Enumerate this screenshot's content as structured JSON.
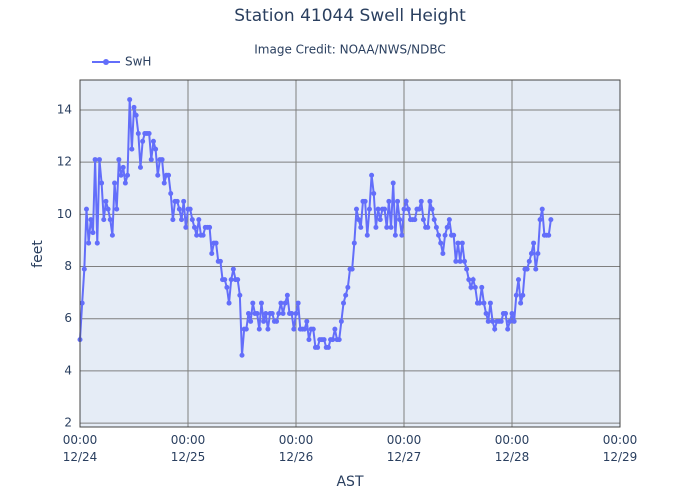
{
  "chart_data": {
    "type": "line",
    "title": "Station 41044 Swell Height",
    "subtitle": "Image Credit: NOAA/NWS/NDBC",
    "x_label": "AST",
    "y_label": "feet",
    "x": [
      0,
      0.48,
      0.96,
      1.44,
      1.92,
      2.4,
      2.88,
      3.36,
      3.84,
      4.32,
      4.8,
      5.28,
      5.76,
      6.24,
      6.72,
      7.2,
      7.68,
      8.16,
      8.64,
      9.12,
      9.6,
      10.08,
      10.56,
      11.04,
      11.52,
      12,
      12.48,
      12.96,
      13.44,
      13.92,
      14.4,
      14.88,
      15.36,
      15.84,
      16.32,
      16.8,
      17.28,
      17.76,
      18.24,
      18.72,
      19.2,
      19.68,
      20.16,
      20.64,
      21.12,
      21.6,
      22.08,
      22.56,
      23.04,
      23.52,
      24,
      24.48,
      24.96,
      25.44,
      25.92,
      26.4,
      26.88,
      27.36,
      27.84,
      28.32,
      28.8,
      29.28,
      29.76,
      30.24,
      30.72,
      31.2,
      31.68,
      32.16,
      32.64,
      33.12,
      33.6,
      34.08,
      34.56,
      35.04,
      35.52,
      36,
      36.48,
      36.96,
      37.44,
      37.92,
      38.4,
      38.88,
      39.36,
      39.84,
      40.32,
      40.8,
      41.28,
      41.76,
      42.24,
      42.72,
      43.2,
      43.68,
      44.16,
      44.64,
      45.12,
      45.6,
      46.08,
      46.56,
      47.04,
      47.52,
      48,
      48.48,
      48.96,
      49.44,
      49.92,
      50.4,
      50.88,
      51.36,
      51.84,
      52.32,
      52.8,
      53.28,
      53.76,
      54.24,
      54.72,
      55.2,
      55.68,
      56.16,
      56.64,
      57.12,
      57.6,
      58.08,
      58.56,
      59.04,
      59.52,
      60,
      60.48,
      60.96,
      61.44,
      61.92,
      62.4,
      62.88,
      63.36,
      63.84,
      64.32,
      64.8,
      65.28,
      65.76,
      66.24,
      66.72,
      67.2,
      67.68,
      68.16,
      68.64,
      69.12,
      69.6,
      70.08,
      70.56,
      71.04,
      71.52,
      72,
      72.48,
      72.96,
      73.44,
      73.92,
      74.4,
      74.88,
      75.36,
      75.84,
      76.32,
      76.8,
      77.28,
      77.76,
      78.24,
      78.72,
      79.2,
      79.68,
      80.16,
      80.64,
      81.12,
      81.6,
      82.08,
      82.56,
      83.04,
      83.52,
      84,
      84.48,
      84.96,
      85.44,
      85.92,
      86.4,
      86.88,
      87.36,
      87.84,
      88.32,
      88.8,
      89.28,
      89.76,
      90.24,
      90.72,
      91.2,
      91.68,
      92.16,
      92.64,
      93.12,
      93.6,
      94.08,
      94.56,
      95.04,
      95.52,
      96,
      96.48,
      96.96,
      97.44,
      97.92,
      98.4,
      98.88,
      99.36,
      99.84,
      100.32,
      100.8,
      101.28,
      101.76,
      102.24,
      102.72,
      103.2,
      103.68,
      104.16,
      104.64
    ],
    "series": [
      {
        "name": "SwH",
        "color": "#636efa",
        "values": [
          5.2,
          6.6,
          7.9,
          10.2,
          8.9,
          9.8,
          9.3,
          12.1,
          8.9,
          12.1,
          11.2,
          9.8,
          10.5,
          10.2,
          9.8,
          9.2,
          11.2,
          10.2,
          12.1,
          11.5,
          11.8,
          11.2,
          11.5,
          14.4,
          12.5,
          14.1,
          13.8,
          13.1,
          11.8,
          12.8,
          13.1,
          13.1,
          13.1,
          12.1,
          12.8,
          12.5,
          11.5,
          12.1,
          12.1,
          11.2,
          11.5,
          11.5,
          10.8,
          9.8,
          10.5,
          10.5,
          10.2,
          9.8,
          10.5,
          9.5,
          10.2,
          10.2,
          9.8,
          9.5,
          9.2,
          9.8,
          9.2,
          9.2,
          9.5,
          9.5,
          9.5,
          8.5,
          8.9,
          8.9,
          8.2,
          8.2,
          7.5,
          7.5,
          7.2,
          6.6,
          7.5,
          7.9,
          7.5,
          7.5,
          6.9,
          4.6,
          5.6,
          5.6,
          6.2,
          5.9,
          6.6,
          6.2,
          6.2,
          5.6,
          6.6,
          5.9,
          6.2,
          5.6,
          6.2,
          6.2,
          5.9,
          5.9,
          6.2,
          6.6,
          6.2,
          6.6,
          6.9,
          6.2,
          6.2,
          5.6,
          6.2,
          6.6,
          5.6,
          5.6,
          5.6,
          5.9,
          5.2,
          5.6,
          5.6,
          4.9,
          4.9,
          5.2,
          5.2,
          5.2,
          4.9,
          4.9,
          5.2,
          5.2,
          5.6,
          5.2,
          5.2,
          5.9,
          6.6,
          6.9,
          7.2,
          7.9,
          7.9,
          8.9,
          10.2,
          9.8,
          9.5,
          10.5,
          10.5,
          9.2,
          10.2,
          11.5,
          10.8,
          9.5,
          10.2,
          9.8,
          10.2,
          10.2,
          9.5,
          10.5,
          9.5,
          11.2,
          9.2,
          10.5,
          9.8,
          9.2,
          10.2,
          10.5,
          10.2,
          9.8,
          9.8,
          9.8,
          10.2,
          10.2,
          10.5,
          9.8,
          9.5,
          9.5,
          10.5,
          10.2,
          9.8,
          9.5,
          9.2,
          8.9,
          8.5,
          9.2,
          9.5,
          9.8,
          9.2,
          9.2,
          8.2,
          8.9,
          8.2,
          8.9,
          8.2,
          7.9,
          7.5,
          7.2,
          7.5,
          7.2,
          6.6,
          6.6,
          7.2,
          6.6,
          6.2,
          5.9,
          6.6,
          5.9,
          5.6,
          5.9,
          5.9,
          5.9,
          6.2,
          6.2,
          5.6,
          5.9,
          6.2,
          5.9,
          6.9,
          7.5,
          6.6,
          6.9,
          7.9,
          7.9,
          8.2,
          8.5,
          8.9,
          7.9,
          8.5,
          9.8,
          10.2,
          9.2,
          9.2,
          9.2,
          9.8
        ]
      }
    ],
    "xlim": [
      0,
      120
    ],
    "xticks": [
      {
        "value": 0,
        "label": "00:00\n12/24"
      },
      {
        "value": 24,
        "label": "00:00\n12/25"
      },
      {
        "value": 48,
        "label": "00:00\n12/26"
      },
      {
        "value": 72,
        "label": "00:00\n12/27"
      },
      {
        "value": 96,
        "label": "00:00\n12/28"
      },
      {
        "value": 120,
        "label": "00:00\n12/29"
      }
    ],
    "ylim": [
      1.85,
      15.15
    ],
    "yticks": [
      2,
      4,
      6,
      8,
      10,
      12,
      14
    ],
    "grid": true,
    "legend": "top-left"
  }
}
